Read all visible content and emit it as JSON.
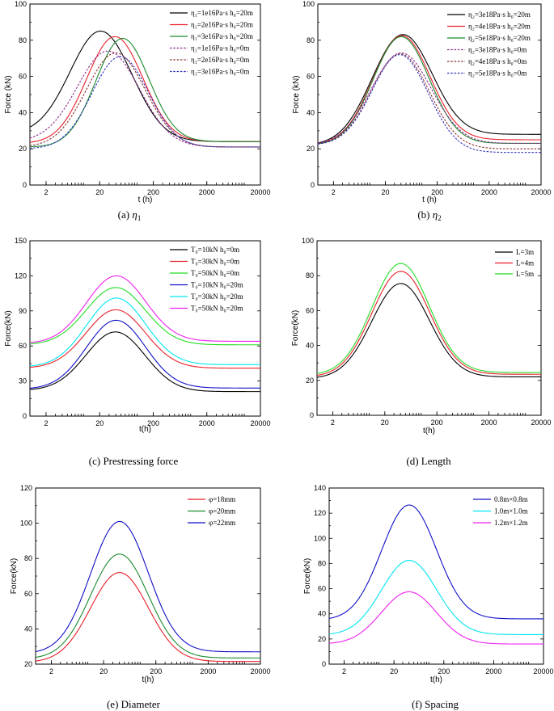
{
  "chart_data": [
    {
      "id": "a",
      "type": "line",
      "caption": "(a) η",
      "caption_sub": "1",
      "caption_italic": true,
      "ylabel": "Force (kN)",
      "xlabel": "t (h)",
      "ylim": [
        0,
        100
      ],
      "yticks": [
        0,
        20,
        40,
        60,
        80,
        100
      ],
      "xlog": true,
      "xlim": [
        1,
        20000
      ],
      "xticks": [
        2,
        20,
        200,
        2000,
        20000
      ],
      "legend": [
        {
          "name": "η₁=1e16Pa·s  h₀=20m",
          "color": "#000000",
          "dash": false
        },
        {
          "name": "η₁=2e16Pa·s  h₀=20m",
          "color": "#e8202a",
          "dash": false
        },
        {
          "name": "η₁=3e16Pa·s  h₀=20m",
          "color": "#1a8a2e",
          "dash": false
        },
        {
          "name": "η₁=1e16Pa·s  h₀=0m",
          "color": "#8a2a8a",
          "dash": true
        },
        {
          "name": "η₁=2e16Pa·s  h₀=0m",
          "color": "#8a3030",
          "dash": true
        },
        {
          "name": "η₁=3e16Pa·s  h₀=0m",
          "color": "#3030c0",
          "dash": true
        }
      ],
      "series": [
        {
          "name": "η₁=1e16Pa·s h₀=20m",
          "base": 28,
          "peak": 85,
          "end": 24,
          "tpeak": 22,
          "w": 1.05
        },
        {
          "name": "η₁=2e16Pa·s h₀=20m",
          "base": 23,
          "peak": 82,
          "end": 24,
          "tpeak": 38,
          "w": 0.95
        },
        {
          "name": "η₁=3e16Pa·s h₀=20m",
          "base": 21,
          "peak": 81,
          "end": 24,
          "tpeak": 52,
          "w": 0.9
        },
        {
          "name": "η₁=1e16Pa·s h₀=0m",
          "base": 24,
          "peak": 74,
          "end": 21,
          "tpeak": 30,
          "w": 1.05
        },
        {
          "name": "η₁=2e16Pa·s h₀=0m",
          "base": 21,
          "peak": 73,
          "end": 21,
          "tpeak": 40,
          "w": 1.0
        },
        {
          "name": "η₁=3e16Pa·s h₀=0m",
          "base": 20,
          "peak": 71,
          "end": 21,
          "tpeak": 48,
          "w": 0.95
        }
      ]
    },
    {
      "id": "b",
      "type": "line",
      "caption": "(b) η",
      "caption_sub": "2",
      "caption_italic": true,
      "ylabel": "Force (kN)",
      "xlabel": "t (h)",
      "ylim": [
        0,
        100
      ],
      "yticks": [
        0,
        20,
        40,
        60,
        80,
        100
      ],
      "xlog": true,
      "xlim": [
        1,
        20000
      ],
      "xticks": [
        2,
        20,
        200,
        2000,
        20000
      ],
      "legend": [
        {
          "name": "η₂=3e18Pa·s  h₀=20m",
          "color": "#000000",
          "dash": false
        },
        {
          "name": "η₂=4e18Pa·s  h₀=20m",
          "color": "#e8202a",
          "dash": false
        },
        {
          "name": "η₂=5e18Pa·s  h₀=20m",
          "color": "#1a8a2e",
          "dash": false
        },
        {
          "name": "η₂=3e18Pa·s  h₀=0m",
          "color": "#8a2a8a",
          "dash": true
        },
        {
          "name": "η₂=4e18Pa·s  h₀=0m",
          "color": "#8a3030",
          "dash": true
        },
        {
          "name": "η₂=5e18Pa·s  h₀=0m",
          "color": "#3030c0",
          "dash": true
        }
      ],
      "series": [
        {
          "name": "η₂=3e18Pa·s h₀=20m",
          "base": 22,
          "peak": 83,
          "end": 28,
          "tpeak": 40,
          "w": 1.05
        },
        {
          "name": "η₂=4e18Pa·s h₀=20m",
          "base": 22,
          "peak": 82.5,
          "end": 25,
          "tpeak": 40,
          "w": 1.0
        },
        {
          "name": "η₂=5e18Pa·s h₀=20m",
          "base": 22,
          "peak": 82,
          "end": 23,
          "tpeak": 40,
          "w": 0.98
        },
        {
          "name": "η₂=3e18Pa·s h₀=0m",
          "base": 22,
          "peak": 73,
          "end": 23,
          "tpeak": 40,
          "w": 1.05
        },
        {
          "name": "η₂=4e18Pa·s h₀=0m",
          "base": 22,
          "peak": 72.5,
          "end": 20,
          "tpeak": 40,
          "w": 1.0
        },
        {
          "name": "η₂=5e18Pa·s h₀=0m",
          "base": 22,
          "peak": 72,
          "end": 18,
          "tpeak": 40,
          "w": 0.98
        }
      ]
    },
    {
      "id": "c",
      "type": "line",
      "caption": "(c) Prestressing force",
      "caption_color": "#2a2f8a",
      "ylabel": "Force(kN)",
      "xlabel": "t(h)",
      "ylim": [
        0,
        150
      ],
      "yticks": [
        0,
        30,
        60,
        90,
        120,
        150
      ],
      "xlog": true,
      "xlim": [
        1,
        20000
      ],
      "xticks": [
        2,
        20,
        200,
        2000,
        20000
      ],
      "legend": [
        {
          "name": "T₀=10kN h₀=0m",
          "color": "#000000",
          "dash": false
        },
        {
          "name": "T₀=30kN h₀=0m",
          "color": "#e8202a",
          "dash": false
        },
        {
          "name": "T₀=50kN h₀=0m",
          "color": "#22dd22",
          "dash": false
        },
        {
          "name": "T₀=10kN h₀=20m",
          "color": "#1010c8",
          "dash": false
        },
        {
          "name": "T₀=30kN h₀=20m",
          "color": "#00e5f0",
          "dash": false
        },
        {
          "name": "T₀=50kN h₀=20m",
          "color": "#f020f0",
          "dash": false
        }
      ],
      "series": [
        {
          "name": "T₀=10kN h₀=0m",
          "base": 22,
          "peak": 72,
          "end": 21,
          "tpeak": 40,
          "w": 1.0
        },
        {
          "name": "T₀=30kN h₀=0m",
          "base": 41,
          "peak": 91,
          "end": 41,
          "tpeak": 40,
          "w": 1.0
        },
        {
          "name": "T₀=50kN h₀=0m",
          "base": 61,
          "peak": 110,
          "end": 61,
          "tpeak": 40,
          "w": 1.0
        },
        {
          "name": "T₀=10kN h₀=20m",
          "base": 23,
          "peak": 82,
          "end": 24,
          "tpeak": 40,
          "w": 1.0
        },
        {
          "name": "T₀=30kN h₀=20m",
          "base": 42,
          "peak": 101,
          "end": 44,
          "tpeak": 40,
          "w": 1.0
        },
        {
          "name": "T₀=50kN h₀=20m",
          "base": 62,
          "peak": 120,
          "end": 64,
          "tpeak": 40,
          "w": 1.0
        }
      ]
    },
    {
      "id": "d",
      "type": "line",
      "caption": "(d) Length",
      "ylabel": "Force(kN)",
      "xlabel": "t(h)",
      "ylim": [
        0,
        100
      ],
      "yticks": [
        0,
        20,
        40,
        60,
        80,
        100
      ],
      "xlog": true,
      "xlim": [
        1,
        20000
      ],
      "xticks": [
        2,
        20,
        200,
        2000,
        20000
      ],
      "legend": [
        {
          "name": "L=3m",
          "color": "#000000",
          "dash": false
        },
        {
          "name": "L=4m",
          "color": "#e8202a",
          "dash": false
        },
        {
          "name": "L=5m",
          "color": "#22dd22",
          "dash": false
        }
      ],
      "series": [
        {
          "name": "L=3m",
          "base": 21,
          "peak": 75.5,
          "end": 22,
          "tpeak": 40,
          "w": 1.0
        },
        {
          "name": "L=4m",
          "base": 22,
          "peak": 82.5,
          "end": 23.5,
          "tpeak": 40,
          "w": 1.0
        },
        {
          "name": "L=5m",
          "base": 23,
          "peak": 87,
          "end": 24.5,
          "tpeak": 40,
          "w": 1.0
        }
      ]
    },
    {
      "id": "e",
      "type": "line",
      "caption": "(e) Diameter",
      "ylabel": "Force(kN)",
      "xlabel": "t(h)",
      "ylim": [
        20,
        120
      ],
      "yticks": [
        20,
        40,
        60,
        80,
        100,
        120
      ],
      "xlog": true,
      "xlim": [
        1,
        20000
      ],
      "xticks": [
        2,
        20,
        200,
        2000,
        20000
      ],
      "legend": [
        {
          "name": "φ=18mm",
          "color": "#e8202a",
          "dash": false
        },
        {
          "name": "φ=20mm",
          "color": "#1a8a2e",
          "dash": false
        },
        {
          "name": "φ=22mm",
          "color": "#1010c8",
          "dash": false
        }
      ],
      "series": [
        {
          "name": "φ=18mm",
          "base": 21,
          "peak": 72,
          "end": 21.5,
          "tpeak": 40,
          "w": 1.0
        },
        {
          "name": "φ=20mm",
          "base": 23,
          "peak": 82.5,
          "end": 23.5,
          "tpeak": 40,
          "w": 1.0
        },
        {
          "name": "φ=22mm",
          "base": 26,
          "peak": 101,
          "end": 27,
          "tpeak": 40,
          "w": 1.0
        }
      ]
    },
    {
      "id": "f",
      "type": "line",
      "caption": "(f) Spacing",
      "ylabel": "Force(kN)",
      "xlabel": "t(h)",
      "ylim": [
        0,
        140
      ],
      "yticks": [
        0,
        20,
        40,
        60,
        80,
        100,
        120,
        140
      ],
      "xlog": true,
      "xlim": [
        1,
        20000
      ],
      "xticks": [
        2,
        20,
        200,
        2000,
        20000
      ],
      "legend": [
        {
          "name": "0.8m×0.8m",
          "color": "#1010c8",
          "dash": false
        },
        {
          "name": "1.0m×1.0m",
          "color": "#00e5f0",
          "dash": false
        },
        {
          "name": "1.2m×1.2m",
          "color": "#f020f0",
          "dash": false
        }
      ],
      "series": [
        {
          "name": "0.8m×0.8m",
          "base": 35,
          "peak": 126.5,
          "end": 36,
          "tpeak": 40,
          "w": 1.0
        },
        {
          "name": "1.0m×1.0m",
          "base": 23,
          "peak": 82.5,
          "end": 23.5,
          "tpeak": 40,
          "w": 1.0
        },
        {
          "name": "1.2m×1.2m",
          "base": 16,
          "peak": 57.5,
          "end": 16,
          "tpeak": 40,
          "w": 1.0
        }
      ]
    }
  ]
}
